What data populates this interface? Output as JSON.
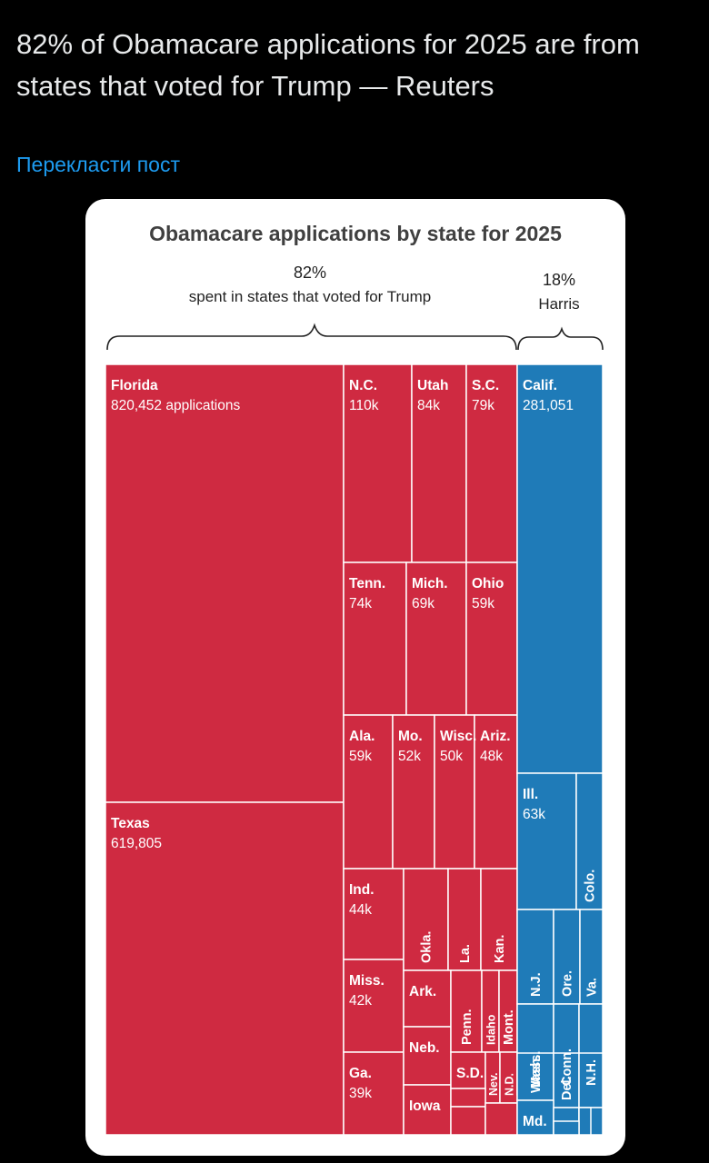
{
  "post": {
    "text": "82% of Obamacare applications for 2025 are from states that voted for Trump — Reuters",
    "translate_label": "Перекласти пост"
  },
  "colors": {
    "trump": "#cf2a41",
    "harris": "#1f7bb8",
    "divider": "#ffffff",
    "title": "#404040"
  },
  "chart_data": {
    "type": "treemap",
    "title": "Obamacare applications by state for 2025",
    "groups": [
      {
        "key": "trump",
        "percent": "82%",
        "label": "spent in states that voted for Trump"
      },
      {
        "key": "harris",
        "percent": "18%",
        "label": "Harris"
      }
    ],
    "states": [
      {
        "name": "Florida",
        "value": 820452,
        "label": "820,452 applications",
        "group": "trump"
      },
      {
        "name": "Texas",
        "value": 619805,
        "label": "619,805",
        "group": "trump"
      },
      {
        "name": "N.C.",
        "value": 110000,
        "label": "110k",
        "group": "trump"
      },
      {
        "name": "Utah",
        "value": 84000,
        "label": "84k",
        "group": "trump"
      },
      {
        "name": "S.C.",
        "value": 79000,
        "label": "79k",
        "group": "trump"
      },
      {
        "name": "Tenn.",
        "value": 74000,
        "label": "74k",
        "group": "trump"
      },
      {
        "name": "Mich.",
        "value": 69000,
        "label": "69k",
        "group": "trump"
      },
      {
        "name": "Ohio",
        "value": 59000,
        "label": "59k",
        "group": "trump"
      },
      {
        "name": "Ala.",
        "value": 59000,
        "label": "59k",
        "group": "trump"
      },
      {
        "name": "Mo.",
        "value": 52000,
        "label": "52k",
        "group": "trump"
      },
      {
        "name": "Wisc.",
        "value": 50000,
        "label": "50k",
        "group": "trump"
      },
      {
        "name": "Ariz.",
        "value": 48000,
        "label": "48k",
        "group": "trump"
      },
      {
        "name": "Ind.",
        "value": 44000,
        "label": "44k",
        "group": "trump"
      },
      {
        "name": "Miss.",
        "value": 42000,
        "label": "42k",
        "group": "trump"
      },
      {
        "name": "Ga.",
        "value": 39000,
        "label": "39k",
        "group": "trump"
      },
      {
        "name": "Okla.",
        "value": null,
        "label": "",
        "group": "trump"
      },
      {
        "name": "La.",
        "value": null,
        "label": "",
        "group": "trump"
      },
      {
        "name": "Kan.",
        "value": null,
        "label": "",
        "group": "trump"
      },
      {
        "name": "Ark.",
        "value": null,
        "label": "",
        "group": "trump"
      },
      {
        "name": "Neb.",
        "value": null,
        "label": "",
        "group": "trump"
      },
      {
        "name": "Iowa",
        "value": null,
        "label": "",
        "group": "trump"
      },
      {
        "name": "Penn.",
        "value": null,
        "label": "",
        "group": "trump"
      },
      {
        "name": "Idaho",
        "value": null,
        "label": "",
        "group": "trump"
      },
      {
        "name": "Mont.",
        "value": null,
        "label": "",
        "group": "trump"
      },
      {
        "name": "S.D.",
        "value": null,
        "label": "",
        "group": "trump"
      },
      {
        "name": "Nev.",
        "value": null,
        "label": "",
        "group": "trump"
      },
      {
        "name": "N.D.",
        "value": null,
        "label": "",
        "group": "trump"
      },
      {
        "name": "",
        "value": null,
        "label": "",
        "group": "trump"
      },
      {
        "name": "",
        "value": null,
        "label": "",
        "group": "trump"
      },
      {
        "name": "",
        "value": null,
        "label": "",
        "group": "trump"
      },
      {
        "name": "Calif.",
        "value": 281051,
        "label": "281,051",
        "group": "harris"
      },
      {
        "name": "Ill.",
        "value": 63000,
        "label": "63k",
        "group": "harris"
      },
      {
        "name": "Colo.",
        "value": null,
        "label": "",
        "group": "harris"
      },
      {
        "name": "N.J.",
        "value": null,
        "label": "",
        "group": "harris"
      },
      {
        "name": "Ore.",
        "value": null,
        "label": "",
        "group": "harris"
      },
      {
        "name": "Va.",
        "value": null,
        "label": "",
        "group": "harris"
      },
      {
        "name": "Mass.",
        "value": null,
        "label": "",
        "group": "harris"
      },
      {
        "name": "Conn.",
        "value": null,
        "label": "",
        "group": "harris"
      },
      {
        "name": "N.H.",
        "value": null,
        "label": "",
        "group": "harris"
      },
      {
        "name": "Wash.",
        "value": null,
        "label": "",
        "group": "harris"
      },
      {
        "name": "Del.",
        "value": null,
        "label": "",
        "group": "harris"
      },
      {
        "name": "Md.",
        "value": null,
        "label": "",
        "group": "harris"
      },
      {
        "name": "",
        "value": null,
        "label": "",
        "group": "harris"
      },
      {
        "name": "",
        "value": null,
        "label": "",
        "group": "harris"
      },
      {
        "name": "",
        "value": null,
        "label": "",
        "group": "harris"
      },
      {
        "name": "",
        "value": null,
        "label": "",
        "group": "harris"
      },
      {
        "name": "",
        "value": null,
        "label": "",
        "group": "harris"
      }
    ]
  }
}
